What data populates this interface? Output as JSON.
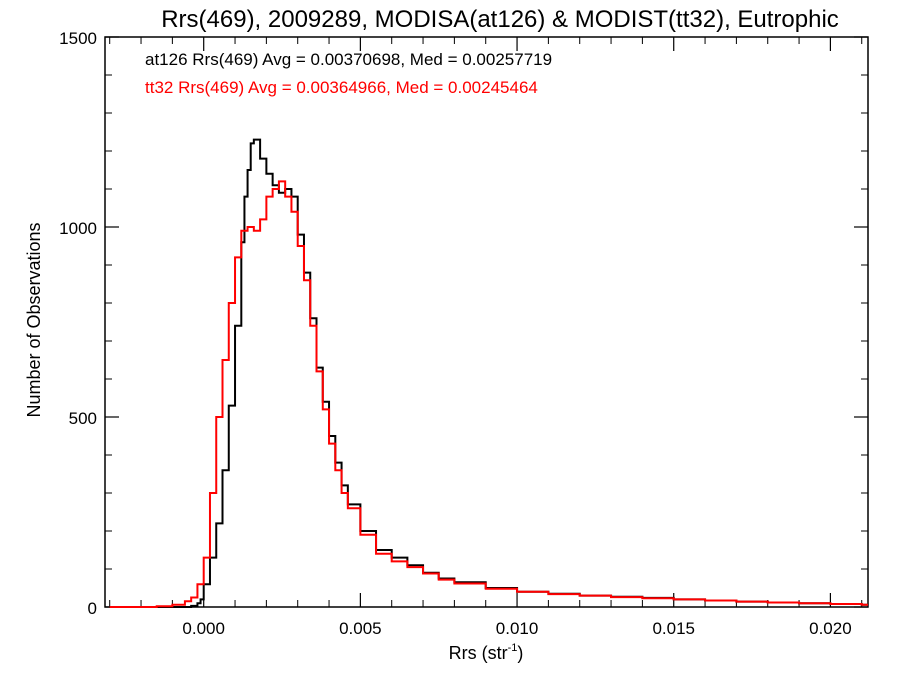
{
  "chart_data": {
    "type": "histogram",
    "title": "Rrs(469), 2009289, MODISA(at126) & MODIST(tt32), Eutrophic",
    "xlabel": "Rrs (str",
    "xlabel_sup": "-1",
    "xlabel_close": ")",
    "ylabel": "Number of Observations",
    "xlim": [
      -0.00315,
      0.0212
    ],
    "ylim": [
      0,
      1500
    ],
    "xticks": [
      0.0,
      0.005,
      0.01,
      0.015,
      0.02
    ],
    "xtick_labels": [
      "0.000",
      "0.005",
      "0.010",
      "0.015",
      "0.020"
    ],
    "yticks": [
      0,
      500,
      1000,
      1500
    ],
    "ytick_labels": [
      "0",
      "500",
      "1000",
      "1500"
    ],
    "x_minor_step": 0.001,
    "y_minor_step": 100,
    "grid": false,
    "legend_position": "top-left",
    "series": [
      {
        "name": "at126",
        "color": "#000000",
        "legend": "at126 Rrs(469) Avg = 0.00370698, Med = 0.00257719",
        "points": [
          [
            -0.003,
            0
          ],
          [
            -0.002,
            0
          ],
          [
            -0.001,
            0
          ],
          [
            -0.0006,
            0
          ],
          [
            -0.0004,
            3
          ],
          [
            -0.0002,
            10
          ],
          [
            -0.0001,
            20
          ],
          [
            0.0,
            60
          ],
          [
            0.0002,
            130
          ],
          [
            0.0004,
            220
          ],
          [
            0.0006,
            360
          ],
          [
            0.0008,
            530
          ],
          [
            0.001,
            740
          ],
          [
            0.0012,
            960
          ],
          [
            0.0013,
            1080
          ],
          [
            0.0014,
            1150
          ],
          [
            0.0015,
            1220
          ],
          [
            0.0016,
            1230
          ],
          [
            0.0018,
            1180
          ],
          [
            0.002,
            1140
          ],
          [
            0.0022,
            1110
          ],
          [
            0.0024,
            1090
          ],
          [
            0.0026,
            1100
          ],
          [
            0.0028,
            1080
          ],
          [
            0.003,
            980
          ],
          [
            0.0032,
            880
          ],
          [
            0.0034,
            760
          ],
          [
            0.0036,
            630
          ],
          [
            0.0038,
            540
          ],
          [
            0.004,
            450
          ],
          [
            0.0042,
            380
          ],
          [
            0.0044,
            320
          ],
          [
            0.0046,
            270
          ],
          [
            0.005,
            200
          ],
          [
            0.0055,
            150
          ],
          [
            0.006,
            130
          ],
          [
            0.0065,
            110
          ],
          [
            0.007,
            90
          ],
          [
            0.0075,
            75
          ],
          [
            0.008,
            65
          ],
          [
            0.009,
            50
          ],
          [
            0.01,
            40
          ],
          [
            0.011,
            35
          ],
          [
            0.012,
            30
          ],
          [
            0.013,
            27
          ],
          [
            0.014,
            24
          ],
          [
            0.015,
            20
          ],
          [
            0.016,
            17
          ],
          [
            0.017,
            14
          ],
          [
            0.018,
            12
          ],
          [
            0.019,
            10
          ],
          [
            0.02,
            8
          ],
          [
            0.021,
            6
          ]
        ]
      },
      {
        "name": "tt32",
        "color": "#ff0000",
        "legend": "tt32 Rrs(469) Avg = 0.00364966, Med = 0.00245464",
        "points": [
          [
            -0.003,
            0
          ],
          [
            -0.002,
            0
          ],
          [
            -0.0015,
            2
          ],
          [
            -0.001,
            6
          ],
          [
            -0.0006,
            15
          ],
          [
            -0.0004,
            25
          ],
          [
            -0.0002,
            60
          ],
          [
            0.0,
            130
          ],
          [
            0.0002,
            300
          ],
          [
            0.0004,
            500
          ],
          [
            0.0006,
            650
          ],
          [
            0.0008,
            800
          ],
          [
            0.001,
            920
          ],
          [
            0.0012,
            990
          ],
          [
            0.0014,
            1000
          ],
          [
            0.0016,
            990
          ],
          [
            0.0018,
            1020
          ],
          [
            0.002,
            1080
          ],
          [
            0.0022,
            1100
          ],
          [
            0.0024,
            1120
          ],
          [
            0.0026,
            1080
          ],
          [
            0.0028,
            1040
          ],
          [
            0.003,
            950
          ],
          [
            0.0032,
            860
          ],
          [
            0.0034,
            740
          ],
          [
            0.0036,
            620
          ],
          [
            0.0038,
            520
          ],
          [
            0.004,
            430
          ],
          [
            0.0042,
            360
          ],
          [
            0.0044,
            300
          ],
          [
            0.0046,
            260
          ],
          [
            0.005,
            190
          ],
          [
            0.0055,
            140
          ],
          [
            0.006,
            120
          ],
          [
            0.0065,
            105
          ],
          [
            0.007,
            88
          ],
          [
            0.0075,
            72
          ],
          [
            0.008,
            62
          ],
          [
            0.009,
            48
          ],
          [
            0.01,
            40
          ],
          [
            0.011,
            34
          ],
          [
            0.012,
            30
          ],
          [
            0.013,
            26
          ],
          [
            0.014,
            23
          ],
          [
            0.015,
            20
          ],
          [
            0.016,
            17
          ],
          [
            0.017,
            14
          ],
          [
            0.018,
            12
          ],
          [
            0.019,
            10
          ],
          [
            0.02,
            8
          ],
          [
            0.021,
            6
          ]
        ]
      }
    ]
  }
}
